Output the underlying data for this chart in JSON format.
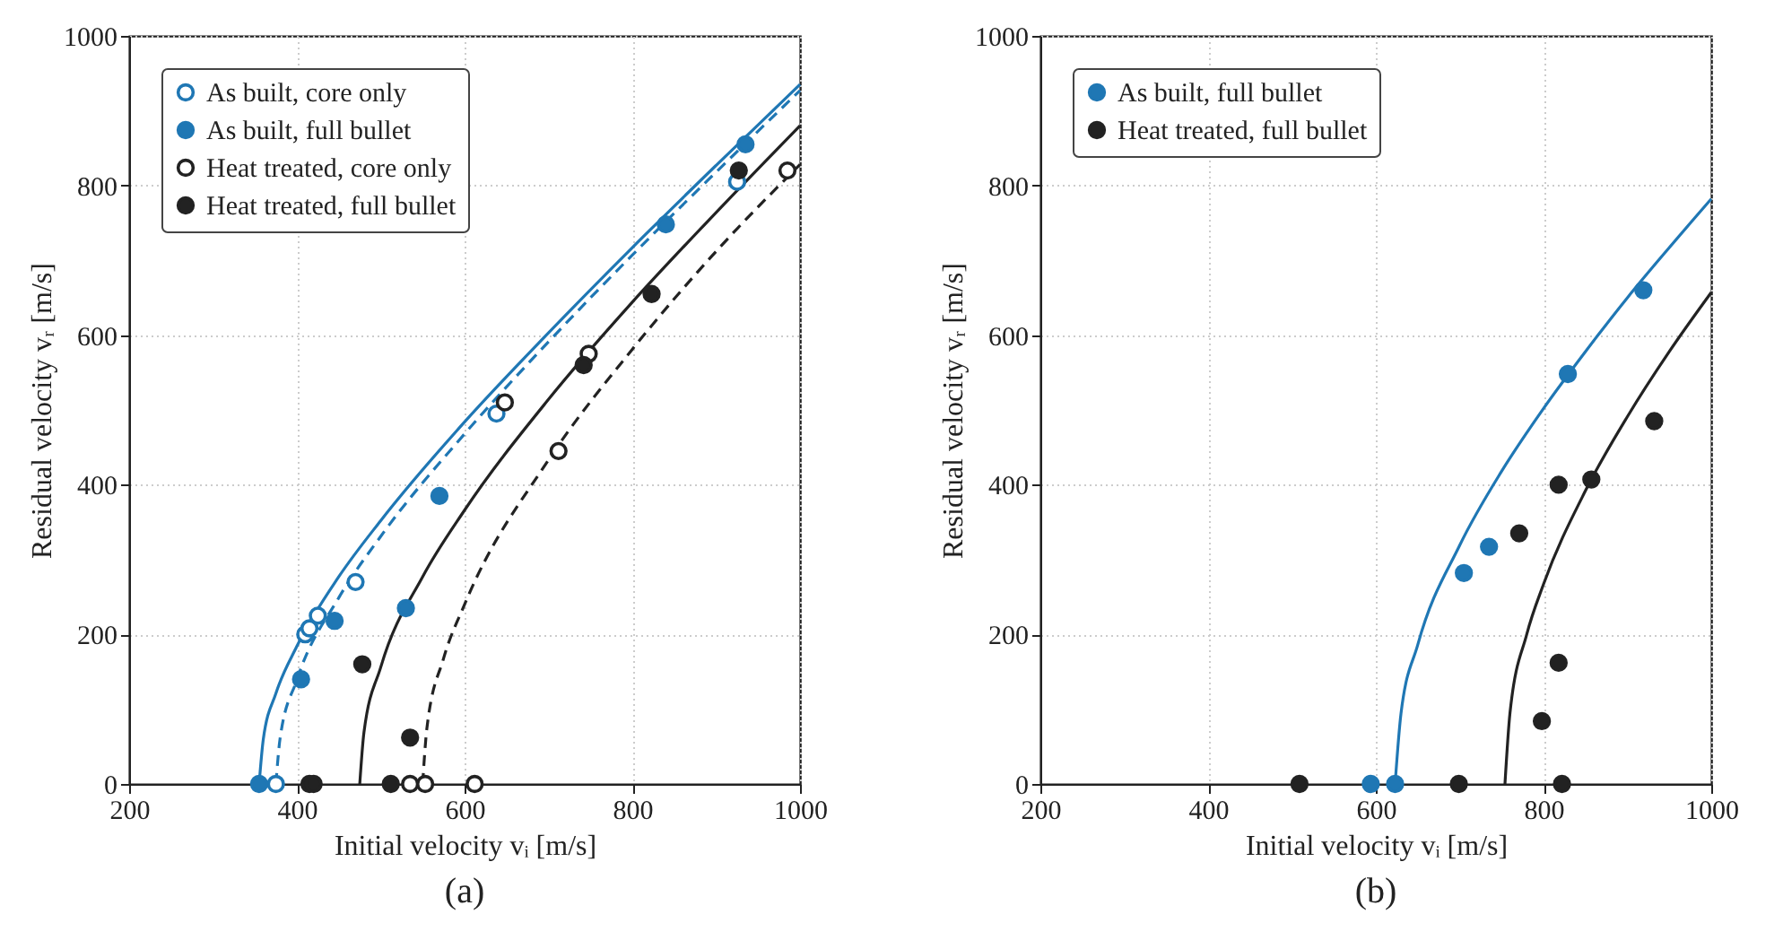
{
  "chart_data": [
    {
      "type": "scatter",
      "title": "(a)",
      "xlabel": "Initial velocity vᵢ [m/s]",
      "ylabel": "Residual velocity vᵣ [m/s]",
      "xlim": [
        200,
        1000
      ],
      "ylim": [
        0,
        1000
      ],
      "xticks": [
        200,
        400,
        600,
        800,
        1000
      ],
      "yticks": [
        0,
        200,
        400,
        600,
        800,
        1000
      ],
      "grid": true,
      "legend": "top left",
      "series": [
        {
          "name": "As built, core only",
          "color": "#1f77b4",
          "marker": "circle",
          "line_style": "dashed",
          "x": [
            375,
            410,
            415,
            425,
            470,
            638,
            925
          ],
          "values": [
            0,
            200,
            208,
            225,
            270,
            495,
            805
          ]
        },
        {
          "name": "As built, full bullet",
          "color": "#1f77b4",
          "marker": "circle",
          "line_style": "solid",
          "x": [
            355,
            405,
            445,
            530,
            570,
            840,
            935
          ],
          "values": [
            0,
            140,
            218,
            235,
            385,
            748,
            855
          ]
        },
        {
          "name": "Heat treated, core only",
          "color": "#222222",
          "marker": "circle",
          "line_style": "dashed",
          "x": [
            535,
            553,
            612,
            648,
            712,
            748,
            985
          ],
          "values": [
            0,
            0,
            0,
            510,
            445,
            575,
            820
          ]
        },
        {
          "name": "Heat treated, full bullet",
          "color": "#222222",
          "marker": "circle",
          "line_style": "solid",
          "x": [
            415,
            420,
            478,
            512,
            535,
            742,
            823,
            927
          ],
          "values": [
            0,
            0,
            160,
            0,
            62,
            560,
            655,
            820
          ]
        },
        {
          "type": "line",
          "color": "#1f77b4",
          "line_style": "dashed",
          "x": [
            375,
            380,
            400,
            450,
            500,
            600,
            700,
            800,
            900,
            1000
          ],
          "values": [
            0,
            61,
            139,
            249,
            331,
            468,
            591,
            707,
            818,
            927
          ]
        },
        {
          "type": "line",
          "color": "#1f77b4",
          "line_style": "solid",
          "x": [
            355,
            360,
            375,
            400,
            450,
            500,
            600,
            700,
            800,
            900,
            1000
          ],
          "values": [
            0,
            60,
            121,
            184,
            277,
            352,
            484,
            603,
            717,
            827,
            935
          ]
        },
        {
          "type": "line",
          "color": "#222222",
          "line_style": "dashed",
          "x": [
            550,
            555,
            575,
            600,
            700,
            800,
            900,
            1000
          ],
          "values": [
            0,
            74,
            168,
            240,
            433,
            581,
            712,
            828
          ]
        },
        {
          "type": "line",
          "color": "#222222",
          "line_style": "solid",
          "x": [
            475,
            480,
            500,
            550,
            600,
            700,
            800,
            900,
            1000
          ],
          "values": [
            0,
            69,
            156,
            277,
            366,
            514,
            644,
            764,
            880
          ]
        }
      ]
    },
    {
      "type": "scatter",
      "title": "(b)",
      "xlabel": "Initial velocity vᵢ [m/s]",
      "ylabel": "Residual velocity vᵣ [m/s]",
      "xlim": [
        200,
        1000
      ],
      "ylim": [
        0,
        1000
      ],
      "xticks": [
        200,
        400,
        600,
        800,
        1000
      ],
      "yticks": [
        0,
        200,
        400,
        600,
        800,
        1000
      ],
      "grid": true,
      "legend": "top left",
      "series": [
        {
          "name": "As built, full bullet",
          "color": "#1f77b4",
          "marker": "circle",
          "line_style": "solid",
          "x": [
            594,
            623,
            705,
            735,
            829,
            919
          ],
          "values": [
            0,
            0,
            282,
            317,
            548,
            660
          ]
        },
        {
          "name": "Heat treated, full bullet",
          "color": "#222222",
          "marker": "circle",
          "line_style": "solid",
          "x": [
            509,
            699,
            822,
            798,
            818,
            818,
            771,
            857,
            932
          ],
          "values": [
            0,
            0,
            0,
            84,
            162,
            400,
            335,
            407,
            485
          ]
        },
        {
          "type": "line",
          "color": "#1f77b4",
          "line_style": "solid",
          "x": [
            623,
            630,
            650,
            700,
            750,
            800,
            850,
            900,
            950,
            1000
          ],
          "values": [
            0,
            94,
            186,
            319,
            418,
            502,
            578,
            650,
            717,
            782
          ]
        },
        {
          "type": "line",
          "color": "#222222",
          "line_style": "solid",
          "x": [
            754,
            760,
            780,
            800,
            850,
            900,
            950,
            1000
          ],
          "values": [
            0,
            95,
            200,
            267,
            392,
            491,
            578,
            657
          ]
        }
      ]
    }
  ]
}
